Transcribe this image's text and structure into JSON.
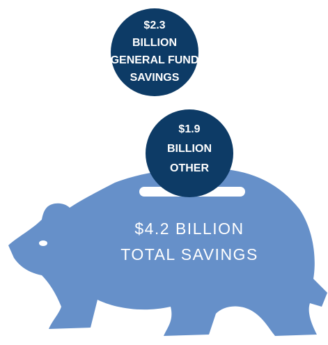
{
  "general_fund_coin": {
    "amount": "$2.3",
    "unit": "BILLION",
    "label_lines": [
      "GENERAL FUND",
      "SAVINGS"
    ]
  },
  "other_coin": {
    "amount": "$1.9",
    "unit": "BILLION",
    "label_lines": [
      "OTHER"
    ]
  },
  "total": {
    "line1": "$4.2 BILLION",
    "line2": "TOTAL SAVINGS"
  }
}
